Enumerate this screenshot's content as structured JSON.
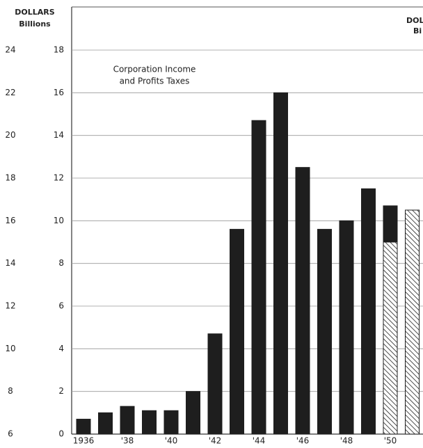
{
  "chart_data": {
    "type": "bar",
    "stacked": true,
    "y_axis_label": [
      "DOLLARS",
      "Billions"
    ],
    "y2_axis_label": [
      "DOL",
      "Bi"
    ],
    "annotation": [
      "Corporation Income",
      "and Profits Taxes"
    ],
    "categories": [
      "1936",
      null,
      "'38",
      null,
      "'40",
      null,
      "'42",
      null,
      "'44",
      null,
      "'46",
      null,
      "'48",
      null,
      "'50",
      null
    ],
    "series": [
      {
        "color": "hatched",
        "values": [
          null,
          null,
          null,
          null,
          null,
          null,
          null,
          null,
          null,
          null,
          null,
          null,
          null,
          null,
          9.0,
          10.5
        ]
      },
      {
        "color": "#1e1e1e",
        "values": [
          0.7,
          1.0,
          1.3,
          1.1,
          1.1,
          2.0,
          4.7,
          9.6,
          14.7,
          16.0,
          12.5,
          9.6,
          10.0,
          11.5,
          1.7,
          null
        ]
      }
    ],
    "ylim": [
      0,
      18
    ],
    "yticks": [
      0,
      2,
      4,
      6,
      8,
      10,
      12,
      14,
      16,
      18
    ],
    "y2lim": [
      6,
      24
    ],
    "y2ticks": [
      6,
      8,
      10,
      12,
      14,
      16,
      18,
      20,
      22,
      24
    ],
    "grid": true
  }
}
